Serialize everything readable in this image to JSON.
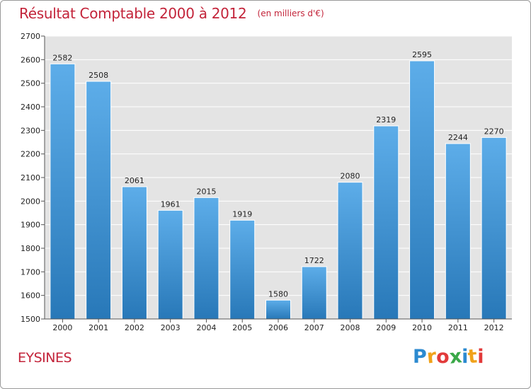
{
  "chart_data": {
    "type": "bar",
    "title": "Résultat Comptable 2000 à 2012",
    "subtitle": "(en milliers d'€)",
    "categories": [
      "2000",
      "2001",
      "2002",
      "2003",
      "2004",
      "2005",
      "2006",
      "2007",
      "2008",
      "2009",
      "2010",
      "2011",
      "2012"
    ],
    "values": [
      2582,
      2508,
      2061,
      1961,
      2015,
      1919,
      1580,
      1722,
      2080,
      2319,
      2595,
      2244,
      2270
    ],
    "ylim": [
      1500,
      2700
    ],
    "yticks": [
      1500,
      1600,
      1700,
      1800,
      1900,
      2000,
      2100,
      2200,
      2300,
      2400,
      2500,
      2600,
      2700
    ],
    "xlabel": "",
    "ylabel": "",
    "grid": true,
    "colors": {
      "bar_top": "#5dade9",
      "bar_bottom": "#2878b8",
      "plot_bg": "#e4e4e4",
      "grid": "#ffffff"
    }
  },
  "footer": {
    "city": "EYSINES",
    "logo_letters": [
      "P",
      "r",
      "o",
      "x",
      "i",
      "t",
      "i"
    ],
    "logo_colors": [
      "#2c8ad0",
      "#f0a21a",
      "#e23a3a",
      "#3aa848",
      "#2c8ad0",
      "#f0a21a",
      "#e23a3a"
    ]
  }
}
